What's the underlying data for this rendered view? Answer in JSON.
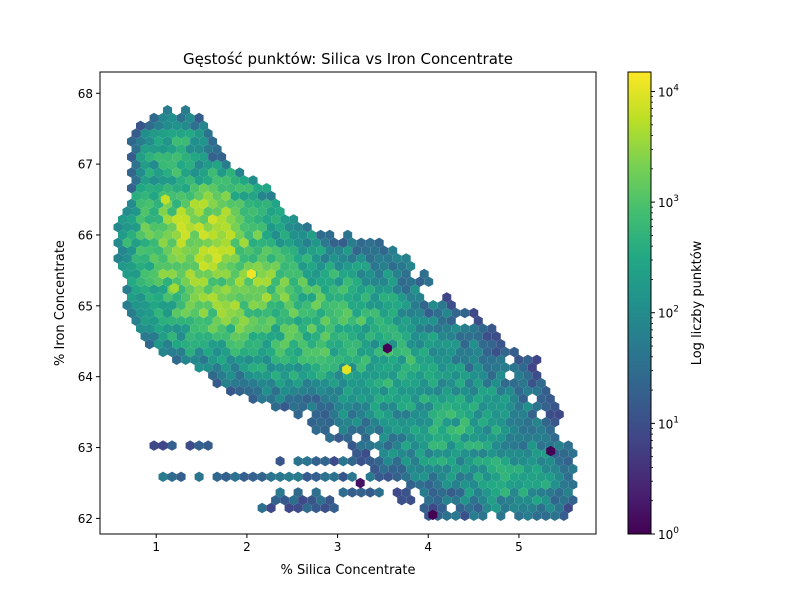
{
  "chart_data": {
    "type": "hexbin",
    "title": "Gęstość punktów: Silica vs Iron Concentrate",
    "xlabel": "% Silica Concentrate",
    "ylabel": "% Iron Concentrate",
    "xlim": [
      0.38,
      5.85
    ],
    "ylim": [
      61.78,
      68.3
    ],
    "xticks": [
      1,
      2,
      3,
      4,
      5
    ],
    "yticks": [
      62,
      63,
      64,
      65,
      66,
      67,
      68
    ],
    "colorbar": {
      "label": "Log liczby punktów",
      "scale": "log",
      "min": 1,
      "max": 15000,
      "ticks": [
        {
          "value": 1,
          "label": "10",
          "exp": "0"
        },
        {
          "value": 10,
          "label": "10",
          "exp": "1"
        },
        {
          "value": 100,
          "label": "10",
          "exp": "2"
        },
        {
          "value": 1000,
          "label": "10",
          "exp": "3"
        },
        {
          "value": 10000,
          "label": "10",
          "exp": "4"
        }
      ],
      "colormap": "viridis"
    },
    "density_clusters": [
      {
        "x": 1.5,
        "y": 65.9,
        "sx": 0.45,
        "sy": 0.55,
        "peak": 3.6
      },
      {
        "x": 1.9,
        "y": 65.2,
        "sx": 0.6,
        "sy": 0.55,
        "peak": 3.3
      },
      {
        "x": 2.7,
        "y": 64.8,
        "sx": 0.7,
        "sy": 0.6,
        "peak": 2.9
      },
      {
        "x": 3.6,
        "y": 64.1,
        "sx": 0.6,
        "sy": 0.55,
        "peak": 2.6
      },
      {
        "x": 4.3,
        "y": 63.3,
        "sx": 0.55,
        "sy": 0.6,
        "peak": 2.5
      },
      {
        "x": 4.9,
        "y": 62.6,
        "sx": 0.45,
        "sy": 0.35,
        "peak": 2.5
      },
      {
        "x": 1.2,
        "y": 67.0,
        "sx": 0.25,
        "sy": 0.4,
        "peak": 2.7
      }
    ],
    "bands": [
      {
        "y": 63.0,
        "x0": 0.95,
        "x1": 1.75,
        "level": 1.0
      },
      {
        "y": 62.6,
        "x0": 1.0,
        "x1": 3.4,
        "level": 1.35
      },
      {
        "y": 62.8,
        "x0": 2.3,
        "x1": 3.8,
        "level": 1.2
      },
      {
        "y": 62.2,
        "x0": 2.1,
        "x1": 3.0,
        "level": 1.15
      },
      {
        "y": 62.4,
        "x0": 2.3,
        "x1": 3.6,
        "level": 1.25
      },
      {
        "y": 64.2,
        "x0": 4.8,
        "x1": 5.5,
        "level": 1.1
      },
      {
        "y": 62.05,
        "x0": 4.0,
        "x1": 4.6,
        "level": 1.25
      }
    ],
    "peak_cells": [
      {
        "x": 1.1,
        "y": 66.5,
        "level": 3.8
      },
      {
        "x": 2.05,
        "y": 65.45,
        "level": 4.1
      },
      {
        "x": 3.1,
        "y": 64.1,
        "level": 4.0
      },
      {
        "x": 1.2,
        "y": 65.25,
        "level": 3.6
      },
      {
        "x": 4.05,
        "y": 62.05,
        "level": 0
      },
      {
        "x": 3.55,
        "y": 64.4,
        "level": 0
      },
      {
        "x": 5.35,
        "y": 62.95,
        "level": 0
      },
      {
        "x": 3.25,
        "y": 62.5,
        "level": 0.2
      }
    ]
  }
}
